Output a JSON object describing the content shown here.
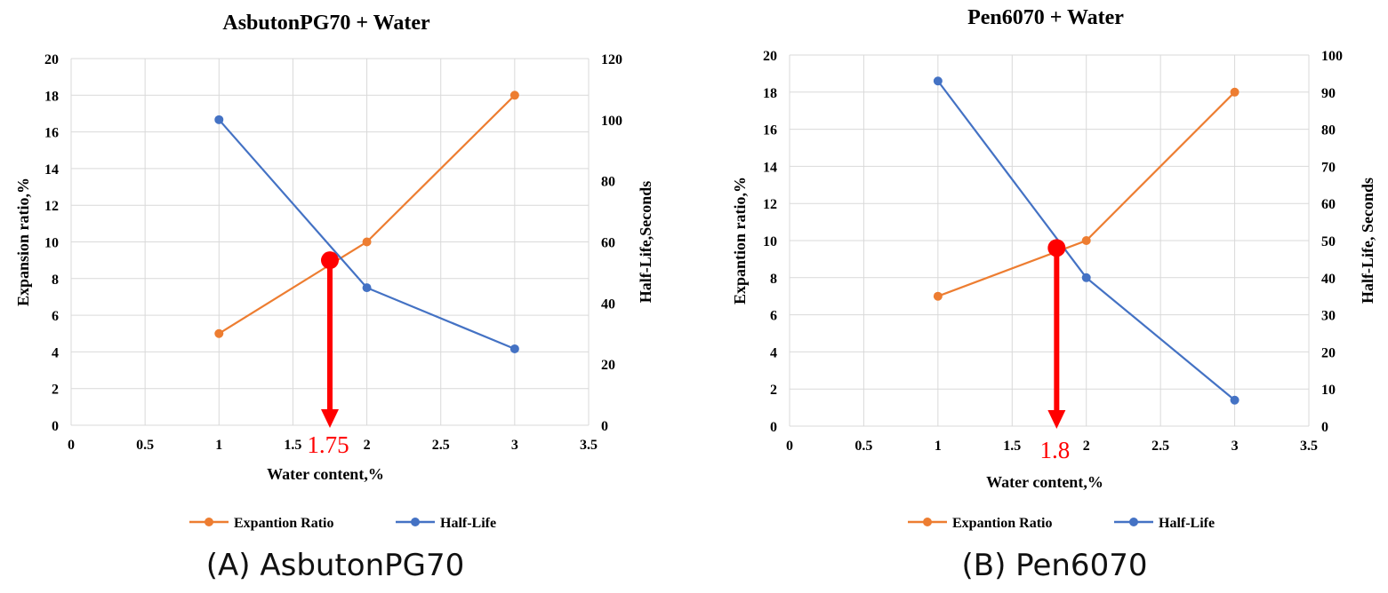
{
  "colors": {
    "expansion": "#ED7D31",
    "halflife": "#4472C4",
    "marker": "#FF0000",
    "grid": "#D9D9D9",
    "text": "#000000"
  },
  "chart_data": [
    {
      "type": "line",
      "title": "AsbutonPG70 + Water",
      "xlabel": "Water content,%",
      "ylabel": "Expansion ratio,%",
      "y2label": "Half-Life,Seconds",
      "xlim": [
        0,
        3.5
      ],
      "xticks": [
        0,
        0.5,
        1,
        1.5,
        2,
        2.5,
        3,
        3.5
      ],
      "ylim": [
        0,
        20
      ],
      "yticks": [
        0,
        2,
        4,
        6,
        8,
        10,
        12,
        14,
        16,
        18,
        20
      ],
      "y2lim": [
        0,
        120
      ],
      "y2ticks": [
        0,
        20,
        40,
        60,
        80,
        100,
        120
      ],
      "grid": true,
      "legend": "bottom",
      "series": [
        {
          "name": "Expantion Ratio",
          "axis": "left",
          "x": [
            1,
            2,
            3
          ],
          "y": [
            5,
            10,
            18
          ]
        },
        {
          "name": "Half-Life",
          "axis": "right",
          "x": [
            1,
            2,
            3
          ],
          "y": [
            100,
            45,
            25
          ]
        }
      ],
      "annotation": {
        "x": 1.75,
        "y": 9,
        "label": "1.75"
      },
      "caption": "(A) AsbutonPG70"
    },
    {
      "type": "line",
      "title": "Pen6070 + Water",
      "xlabel": "Water content,%",
      "ylabel": "Expantion ratio,%",
      "y2label": "Half-Life, Seconds",
      "xlim": [
        0,
        3.5
      ],
      "xticks": [
        0,
        0.5,
        1,
        1.5,
        2,
        2.5,
        3,
        3.5
      ],
      "ylim": [
        0,
        20
      ],
      "yticks": [
        0,
        2,
        4,
        6,
        8,
        10,
        12,
        14,
        16,
        18,
        20
      ],
      "y2lim": [
        0,
        100
      ],
      "y2ticks": [
        0,
        10,
        20,
        30,
        40,
        50,
        60,
        70,
        80,
        90,
        100
      ],
      "grid": true,
      "legend": "bottom",
      "series": [
        {
          "name": "Expantion Ratio",
          "axis": "left",
          "x": [
            1,
            2,
            3
          ],
          "y": [
            7,
            10,
            18
          ]
        },
        {
          "name": "Half-Life",
          "axis": "right",
          "x": [
            1,
            2,
            3
          ],
          "y": [
            93,
            40,
            7
          ]
        }
      ],
      "annotation": {
        "x": 1.8,
        "y": 9.6,
        "label": "1.8"
      },
      "caption": "(B) Pen6070"
    }
  ]
}
